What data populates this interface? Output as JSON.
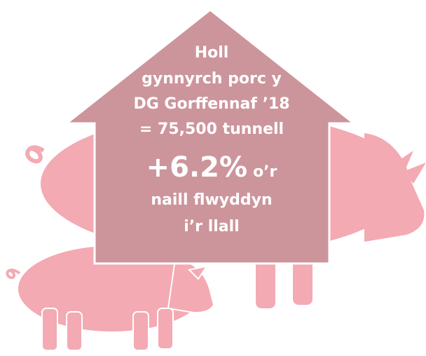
{
  "headline": {
    "lines": [
      "Holl",
      "gynnyrch porc y",
      "DG Gorffennaf ’18",
      "= 75,500 tunnell"
    ]
  },
  "change": {
    "figure": "+6.2%",
    "lines": [
      "o’r",
      "naill flwyddyn",
      "i’r llall"
    ]
  }
}
